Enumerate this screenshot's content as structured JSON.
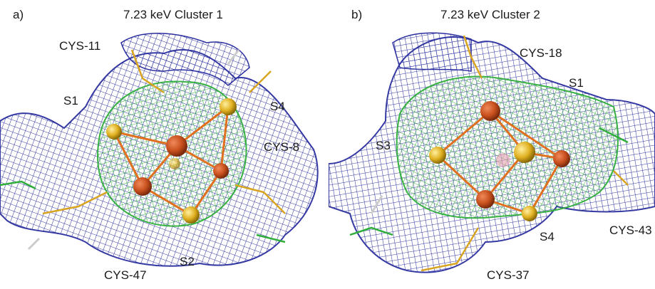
{
  "figure": {
    "panels": [
      {
        "letter": "a)",
        "title": "7.23 keV Cluster 1",
        "labels": [
          "CYS-11",
          "S1",
          "S4",
          "CYS-8",
          "CYS-47",
          "S2"
        ]
      },
      {
        "letter": "b)",
        "title": "7.23 keV Cluster 2",
        "labels": [
          "CYS-18",
          "S1",
          "S3",
          "S4",
          "CYS-43",
          "CYS-37"
        ]
      }
    ],
    "colors": {
      "mesh_blue": "#2b2f9e",
      "mesh_green": "#2fae3a",
      "iron": "#c8501e",
      "sulfur": "#e0b020",
      "bond": "#e07020"
    }
  }
}
